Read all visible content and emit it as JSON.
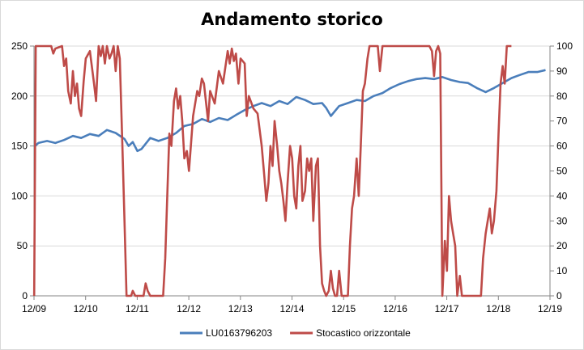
{
  "chart_data": {
    "type": "line",
    "title": "Andamento storico",
    "xlabel": "",
    "ylabel": "",
    "x_ticks": [
      "12/09",
      "12/10",
      "12/11",
      "12/12",
      "12/13",
      "12/14",
      "12/15",
      "12/16",
      "12/17",
      "12/18",
      "12/19"
    ],
    "x_range": [
      2009.917,
      2019.917
    ],
    "y_left": {
      "min": 0,
      "max": 250,
      "ticks": [
        0,
        50,
        100,
        150,
        200,
        250
      ]
    },
    "y_right": {
      "min": 0,
      "max": 100,
      "ticks": [
        0,
        10,
        20,
        30,
        40,
        50,
        60,
        70,
        80,
        90,
        100
      ]
    },
    "grid": true,
    "legend_position": "bottom",
    "series": [
      {
        "name": "LU0163796203",
        "axis": "left",
        "color": "#4a7ebb",
        "points": [
          [
            2009.92,
            149
          ],
          [
            2010.0,
            153
          ],
          [
            2010.17,
            155
          ],
          [
            2010.33,
            153
          ],
          [
            2010.5,
            156
          ],
          [
            2010.67,
            160
          ],
          [
            2010.83,
            158
          ],
          [
            2011.0,
            162
          ],
          [
            2011.17,
            160
          ],
          [
            2011.33,
            166
          ],
          [
            2011.5,
            163
          ],
          [
            2011.67,
            157
          ],
          [
            2011.75,
            150
          ],
          [
            2011.83,
            154
          ],
          [
            2011.92,
            145
          ],
          [
            2012.0,
            147
          ],
          [
            2012.17,
            158
          ],
          [
            2012.33,
            155
          ],
          [
            2012.5,
            158
          ],
          [
            2012.67,
            163
          ],
          [
            2012.83,
            170
          ],
          [
            2013.0,
            172
          ],
          [
            2013.17,
            177
          ],
          [
            2013.33,
            174
          ],
          [
            2013.5,
            178
          ],
          [
            2013.67,
            176
          ],
          [
            2013.83,
            181
          ],
          [
            2014.0,
            186
          ],
          [
            2014.17,
            190
          ],
          [
            2014.33,
            193
          ],
          [
            2014.5,
            190
          ],
          [
            2014.67,
            195
          ],
          [
            2014.83,
            192
          ],
          [
            2015.0,
            199
          ],
          [
            2015.17,
            196
          ],
          [
            2015.33,
            192
          ],
          [
            2015.5,
            193
          ],
          [
            2015.58,
            188
          ],
          [
            2015.67,
            180
          ],
          [
            2015.83,
            190
          ],
          [
            2016.0,
            193
          ],
          [
            2016.17,
            196
          ],
          [
            2016.33,
            195
          ],
          [
            2016.5,
            200
          ],
          [
            2016.67,
            203
          ],
          [
            2016.83,
            208
          ],
          [
            2017.0,
            212
          ],
          [
            2017.17,
            215
          ],
          [
            2017.33,
            217
          ],
          [
            2017.5,
            218
          ],
          [
            2017.67,
            217
          ],
          [
            2017.83,
            219
          ],
          [
            2018.0,
            216
          ],
          [
            2018.17,
            214
          ],
          [
            2018.33,
            213
          ],
          [
            2018.5,
            208
          ],
          [
            2018.67,
            204
          ],
          [
            2018.83,
            208
          ],
          [
            2019.0,
            213
          ],
          [
            2019.17,
            218
          ],
          [
            2019.33,
            221
          ],
          [
            2019.5,
            224
          ],
          [
            2019.67,
            224
          ],
          [
            2019.83,
            226
          ]
        ]
      },
      {
        "name": "Stocastico orizzontale",
        "axis": "right",
        "color": "#be4b48",
        "points": [
          [
            2009.92,
            0
          ],
          [
            2009.95,
            100
          ],
          [
            2010.25,
            100
          ],
          [
            2010.29,
            97
          ],
          [
            2010.33,
            99
          ],
          [
            2010.46,
            100
          ],
          [
            2010.5,
            92
          ],
          [
            2010.54,
            95
          ],
          [
            2010.58,
            82
          ],
          [
            2010.63,
            77
          ],
          [
            2010.67,
            90
          ],
          [
            2010.71,
            80
          ],
          [
            2010.75,
            85
          ],
          [
            2010.79,
            75
          ],
          [
            2010.83,
            72
          ],
          [
            2010.88,
            86
          ],
          [
            2010.92,
            95
          ],
          [
            2011.0,
            98
          ],
          [
            2011.08,
            85
          ],
          [
            2011.12,
            78
          ],
          [
            2011.17,
            100
          ],
          [
            2011.21,
            96
          ],
          [
            2011.25,
            100
          ],
          [
            2011.29,
            93
          ],
          [
            2011.33,
            100
          ],
          [
            2011.38,
            95
          ],
          [
            2011.42,
            97
          ],
          [
            2011.46,
            100
          ],
          [
            2011.5,
            90
          ],
          [
            2011.54,
            100
          ],
          [
            2011.58,
            95
          ],
          [
            2011.63,
            60
          ],
          [
            2011.67,
            30
          ],
          [
            2011.71,
            0
          ],
          [
            2011.8,
            0
          ],
          [
            2011.83,
            2
          ],
          [
            2011.88,
            0
          ],
          [
            2012.04,
            0
          ],
          [
            2012.08,
            5
          ],
          [
            2012.12,
            2
          ],
          [
            2012.17,
            0
          ],
          [
            2012.42,
            0
          ],
          [
            2012.46,
            15
          ],
          [
            2012.5,
            40
          ],
          [
            2012.54,
            65
          ],
          [
            2012.58,
            60
          ],
          [
            2012.63,
            78
          ],
          [
            2012.67,
            83
          ],
          [
            2012.71,
            75
          ],
          [
            2012.75,
            80
          ],
          [
            2012.79,
            70
          ],
          [
            2012.83,
            55
          ],
          [
            2012.88,
            58
          ],
          [
            2012.92,
            50
          ],
          [
            2013.0,
            72
          ],
          [
            2013.08,
            82
          ],
          [
            2013.12,
            80
          ],
          [
            2013.17,
            87
          ],
          [
            2013.21,
            85
          ],
          [
            2013.29,
            70
          ],
          [
            2013.33,
            82
          ],
          [
            2013.42,
            77
          ],
          [
            2013.5,
            90
          ],
          [
            2013.58,
            85
          ],
          [
            2013.67,
            98
          ],
          [
            2013.71,
            93
          ],
          [
            2013.75,
            99
          ],
          [
            2013.79,
            94
          ],
          [
            2013.83,
            97
          ],
          [
            2013.88,
            85
          ],
          [
            2013.92,
            95
          ],
          [
            2014.0,
            93
          ],
          [
            2014.04,
            72
          ],
          [
            2014.08,
            80
          ],
          [
            2014.17,
            75
          ],
          [
            2014.25,
            73
          ],
          [
            2014.33,
            60
          ],
          [
            2014.38,
            48
          ],
          [
            2014.42,
            38
          ],
          [
            2014.46,
            45
          ],
          [
            2014.5,
            60
          ],
          [
            2014.54,
            52
          ],
          [
            2014.58,
            70
          ],
          [
            2014.63,
            60
          ],
          [
            2014.67,
            50
          ],
          [
            2014.71,
            45
          ],
          [
            2014.75,
            38
          ],
          [
            2014.79,
            30
          ],
          [
            2014.83,
            45
          ],
          [
            2014.88,
            60
          ],
          [
            2014.92,
            55
          ],
          [
            2014.96,
            40
          ],
          [
            2015.0,
            35
          ],
          [
            2015.04,
            52
          ],
          [
            2015.08,
            60
          ],
          [
            2015.12,
            38
          ],
          [
            2015.17,
            42
          ],
          [
            2015.21,
            55
          ],
          [
            2015.25,
            50
          ],
          [
            2015.29,
            55
          ],
          [
            2015.33,
            30
          ],
          [
            2015.38,
            52
          ],
          [
            2015.42,
            55
          ],
          [
            2015.46,
            20
          ],
          [
            2015.5,
            5
          ],
          [
            2015.54,
            2
          ],
          [
            2015.58,
            0
          ],
          [
            2015.63,
            2
          ],
          [
            2015.67,
            10
          ],
          [
            2015.71,
            3
          ],
          [
            2015.75,
            0
          ],
          [
            2015.79,
            0
          ],
          [
            2015.83,
            10
          ],
          [
            2015.88,
            0
          ],
          [
            2015.92,
            0
          ],
          [
            2016.0,
            0
          ],
          [
            2016.04,
            20
          ],
          [
            2016.08,
            35
          ],
          [
            2016.12,
            40
          ],
          [
            2016.17,
            55
          ],
          [
            2016.21,
            40
          ],
          [
            2016.25,
            60
          ],
          [
            2016.29,
            82
          ],
          [
            2016.33,
            85
          ],
          [
            2016.38,
            95
          ],
          [
            2016.42,
            100
          ],
          [
            2016.58,
            100
          ],
          [
            2016.62,
            90
          ],
          [
            2016.67,
            100
          ],
          [
            2017.58,
            100
          ],
          [
            2017.63,
            98
          ],
          [
            2017.67,
            88
          ],
          [
            2017.71,
            98
          ],
          [
            2017.75,
            100
          ],
          [
            2017.79,
            97
          ],
          [
            2017.83,
            0
          ],
          [
            2017.88,
            22
          ],
          [
            2017.92,
            10
          ],
          [
            2017.96,
            40
          ],
          [
            2018.0,
            30
          ],
          [
            2018.04,
            25
          ],
          [
            2018.08,
            20
          ],
          [
            2018.12,
            0
          ],
          [
            2018.17,
            8
          ],
          [
            2018.21,
            0
          ],
          [
            2018.25,
            0
          ],
          [
            2018.58,
            0
          ],
          [
            2018.62,
            15
          ],
          [
            2018.67,
            25
          ],
          [
            2018.71,
            30
          ],
          [
            2018.75,
            35
          ],
          [
            2018.79,
            25
          ],
          [
            2018.83,
            30
          ],
          [
            2018.88,
            42
          ],
          [
            2018.92,
            65
          ],
          [
            2018.96,
            85
          ],
          [
            2019.0,
            92
          ],
          [
            2019.04,
            85
          ],
          [
            2019.08,
            100
          ],
          [
            2019.17,
            100
          ]
        ]
      }
    ]
  }
}
